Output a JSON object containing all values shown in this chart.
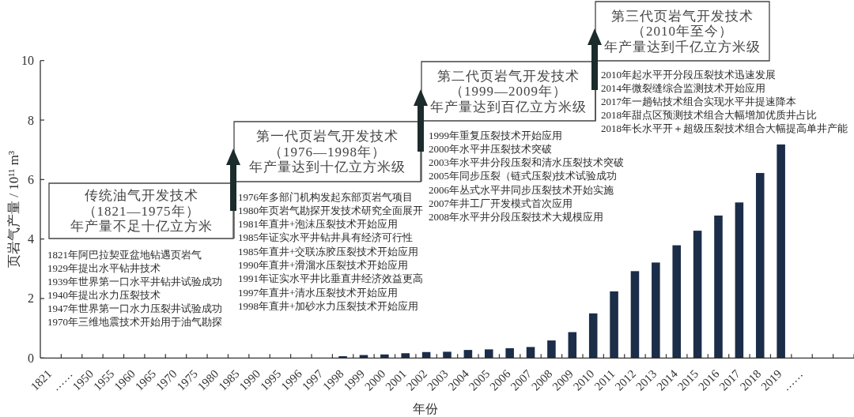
{
  "chart_data": {
    "type": "bar",
    "xlabel": "年份",
    "ylabel": "页岩气产量 / 10¹¹ m³",
    "categories": [
      "1821",
      "……",
      "1950",
      "1955",
      "1960",
      "1965",
      "1970",
      "1975",
      "1980",
      "1985",
      "1990",
      "1995",
      "1996",
      "1997",
      "1998",
      "1999",
      "2000",
      "2001",
      "2002",
      "2003",
      "2004",
      "2005",
      "2006",
      "2007",
      "2008",
      "2009",
      "2010",
      "2011",
      "2012",
      "2013",
      "2014",
      "2015",
      "2016",
      "2017",
      "2018",
      "2019",
      "……",
      null,
      null
    ],
    "values": [
      null,
      null,
      null,
      null,
      null,
      null,
      null,
      null,
      null,
      null,
      null,
      null,
      null,
      null,
      0.06,
      0.1,
      0.12,
      0.16,
      0.2,
      0.21,
      0.27,
      0.29,
      0.33,
      0.37,
      0.59,
      0.87,
      1.5,
      2.24,
      2.92,
      3.21,
      3.79,
      4.28,
      4.79,
      5.23,
      6.22,
      7.18,
      null,
      null,
      null
    ],
    "color": "#1b2d48",
    "ylim": [
      0,
      10
    ],
    "yticks": [
      0,
      2,
      4,
      6,
      8,
      10
    ],
    "annotations": [
      "传统油气开发技术",
      "（1821—1975年）",
      "年产量不足十亿立方米",
      "1821年阿巴拉契亚盆地钻遇页岩气\n1929年提出水平钻井技术\n1939年世界第一口水平井钻井试验成功\n1940年提出水力压裂技术\n1947年世界第一口水力压裂井试验成功\n1970年三维地震技术开始用于油气勘探",
      "第一代页岩气开发技术",
      "（1976—1998年）",
      "年产量达到十亿立方米级",
      "1976年多部门机构发起东部页岩气项目\n1980年页岩气勘探开发技术研究全面展开\n1981年直井+泡沫压裂技术开始应用\n1985年证实水平井钻井具有经济可行性\n1985年直井+交联冻胶压裂技术开始应用\n1990年直井+滑溜水压裂技术开始应用\n1991年证实水平井比垂直井经济效益更高\n1997年直井+清水压裂技术开始应用\n1998年直井+加砂水力压裂技术开始应用",
      "第二代页岩气开发技术",
      "（1999—2009年）",
      "年产量达到百亿立方米级",
      "1999年重复压裂技术开始应用\n2000年水平井压裂技术突破\n2003年水平井分段压裂和清水压裂技术突破\n2005年同步压裂（链式压裂)技术试验成功\n2006年丛式水平井同步压裂技术开始实施\n2007年井工厂开发模式首次应用\n2008年水平井分段压裂技术大规模应用",
      "第三代页岩气开发技术",
      "（2010年至今）",
      "年产量达到千亿立方米级",
      "2010年起水平开分段压裂技术迅速发展\n2014年微裂缝综合监测技术开始应用\n2017年一趟钻技术组合实现水平井提速降本\n2018年甜点区预测技术组合大幅增加优质井占比\n2018年长水平开＋超级压裂技术组合大幅提高单井产能"
    ]
  }
}
